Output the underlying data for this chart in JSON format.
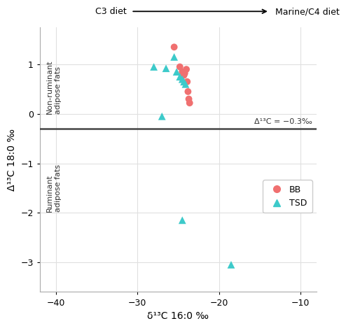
{
  "BB_x": [
    -25.5,
    -24.8,
    -24.5,
    -24.3,
    -24.2,
    -24.0,
    -23.9,
    -23.8,
    -23.7,
    -23.6
  ],
  "BB_y": [
    1.35,
    0.95,
    0.85,
    0.78,
    0.82,
    0.9,
    0.65,
    0.45,
    0.3,
    0.22
  ],
  "TSD_x": [
    -28.0,
    -26.5,
    -25.5,
    -25.2,
    -24.8,
    -24.5,
    -24.3,
    -24.1,
    -27.0,
    -24.5,
    -18.5
  ],
  "TSD_y": [
    0.95,
    0.92,
    1.15,
    0.85,
    0.75,
    0.7,
    0.65,
    0.6,
    -0.05,
    -2.15,
    -3.05
  ],
  "BB_color": "#F07070",
  "TSD_color": "#3DCACA",
  "xlim": [
    -42,
    -8
  ],
  "ylim": [
    -3.6,
    1.75
  ],
  "xlabel": "δ¹³C 16:0 ‰",
  "ylabel": "Δ¹³C 18:0 ‰",
  "threshold_y": -0.3,
  "threshold_label": "Δ¹³C = −0.3‰",
  "top_label_left": "C3 diet",
  "top_label_right": "Marine/C4 diet",
  "label_nonruminant": "Non-ruminant\nadipose fats",
  "label_ruminant": "Ruminant\nadipose fats",
  "xticks": [
    -40,
    -30,
    -20,
    -10
  ],
  "yticks": [
    -3,
    -2,
    -1,
    0,
    1
  ],
  "bg_color": "#FFFFFF",
  "grid_color": "#E0E0E0",
  "spine_color": "#AAAAAA"
}
